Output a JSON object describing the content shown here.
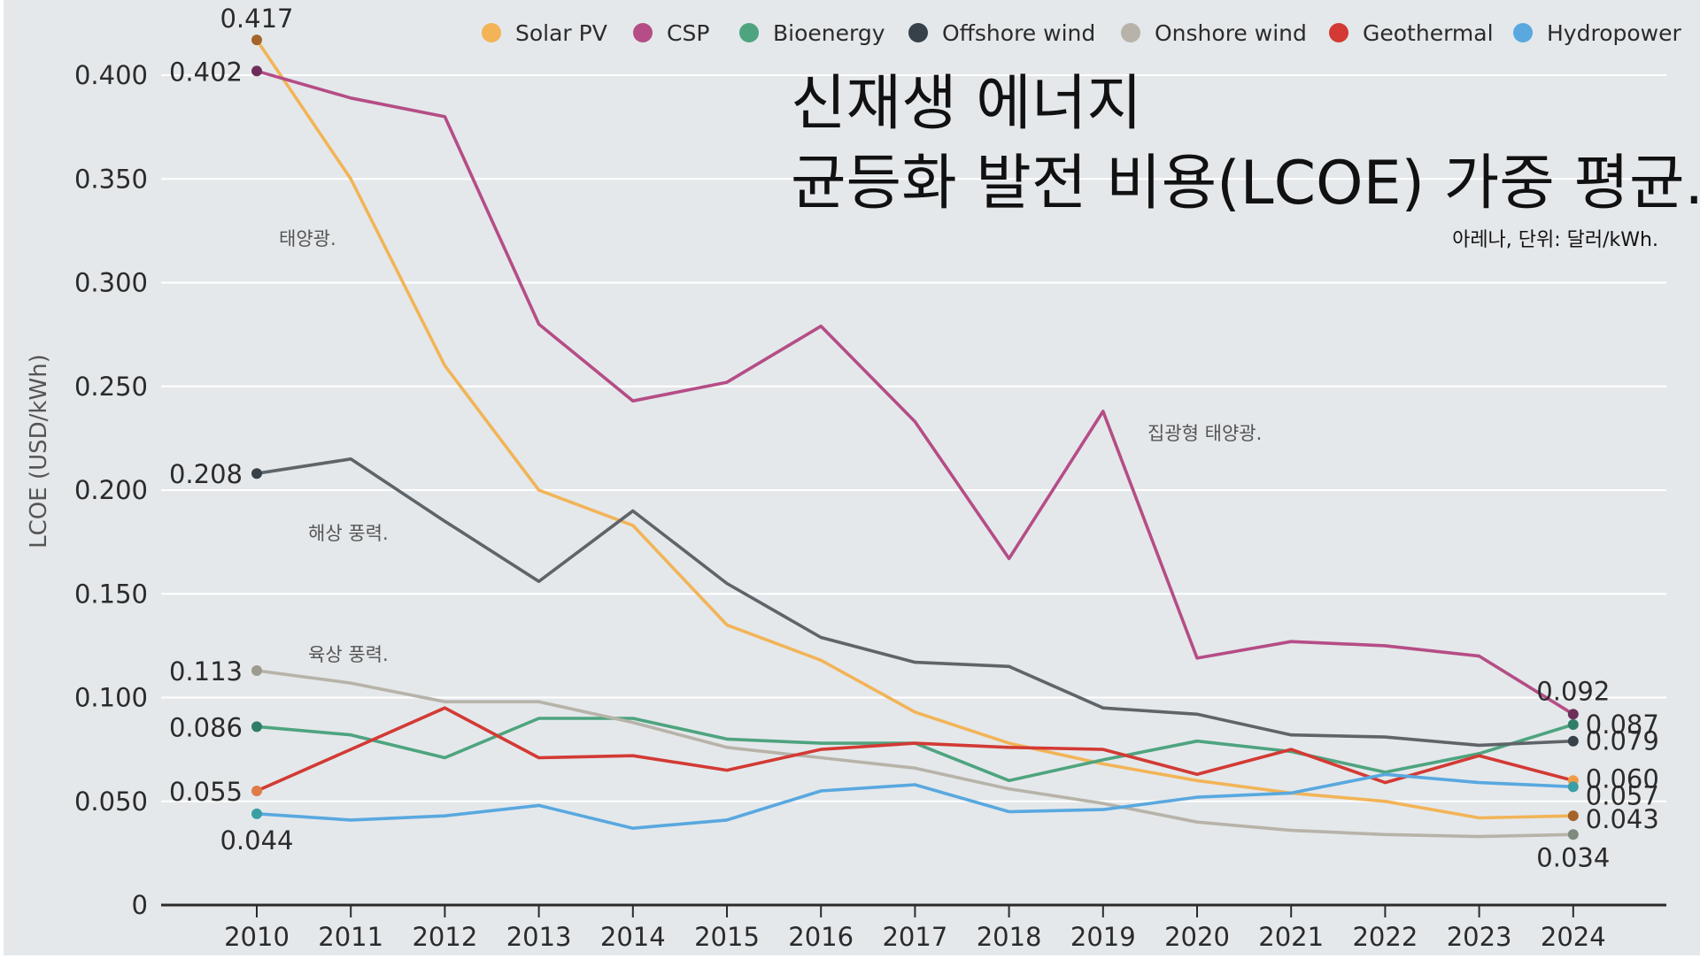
{
  "chart_data": {
    "type": "line",
    "title_line1": "신재생 에너지",
    "title_line2": "균등화 발전 비용(LCOE) 가중 평균.",
    "source": "아레나, 단위: 달러/kWh.",
    "ylabel": "LCOE (USD/kWh)",
    "xlabel": "",
    "ylim": [
      0,
      0.42
    ],
    "yticks": [
      "0",
      "0.050",
      "0.100",
      "0.150",
      "0.200",
      "0.250",
      "0.300",
      "0.350",
      "0.400"
    ],
    "ytick_values": [
      0,
      0.05,
      0.1,
      0.15,
      0.2,
      0.25,
      0.3,
      0.35,
      0.4
    ],
    "categories": [
      "2010",
      "2011",
      "2012",
      "2013",
      "2014",
      "2015",
      "2016",
      "2017",
      "2018",
      "2019",
      "2020",
      "2021",
      "2022",
      "2023",
      "2024"
    ],
    "grid": true,
    "legend_position": "top",
    "series": [
      {
        "name": "Solar PV",
        "color": "#f2b457",
        "values": [
          0.417,
          0.35,
          0.26,
          0.2,
          0.183,
          0.135,
          0.118,
          0.093,
          0.078,
          0.068,
          0.06,
          0.054,
          0.05,
          0.042,
          0.043
        ]
      },
      {
        "name": "CSP",
        "color": "#b54d86",
        "values": [
          0.402,
          0.389,
          0.38,
          0.28,
          0.243,
          0.252,
          0.279,
          0.233,
          0.167,
          0.238,
          0.119,
          0.127,
          0.125,
          0.12,
          0.092
        ]
      },
      {
        "name": "Bioenergy",
        "color": "#4ea47f",
        "values": [
          0.086,
          0.082,
          0.071,
          0.09,
          0.09,
          0.08,
          0.078,
          0.078,
          0.06,
          0.07,
          0.079,
          0.074,
          0.064,
          0.073,
          0.087
        ]
      },
      {
        "name": "Offshore wind",
        "color": "#5f6469",
        "values": [
          0.208,
          0.215,
          0.185,
          0.156,
          0.19,
          0.155,
          0.129,
          0.117,
          0.115,
          0.095,
          0.092,
          0.082,
          0.081,
          0.077,
          0.079
        ]
      },
      {
        "name": "Onshore wind",
        "color": "#b7b3a9",
        "values": [
          0.113,
          0.107,
          0.098,
          0.098,
          0.088,
          0.076,
          0.071,
          0.066,
          0.056,
          0.049,
          0.04,
          0.036,
          0.034,
          0.033,
          0.034
        ]
      },
      {
        "name": "Geothermal",
        "color": "#d33a34",
        "values": [
          0.055,
          0.075,
          0.095,
          0.071,
          0.072,
          0.065,
          0.075,
          0.078,
          0.076,
          0.075,
          0.063,
          0.075,
          0.059,
          0.072,
          0.06
        ]
      },
      {
        "name": "Hydropower",
        "color": "#59a8df",
        "values": [
          0.044,
          0.041,
          0.043,
          0.048,
          0.037,
          0.041,
          0.055,
          0.058,
          0.045,
          0.046,
          0.052,
          0.054,
          0.063,
          0.059,
          0.057
        ]
      }
    ],
    "legend_dot_colors": [
      "#f2b457",
      "#b54d86",
      "#4ea47f",
      "#37414a",
      "#b7b3a9",
      "#d33a34",
      "#59a8df"
    ],
    "start_labels": [
      {
        "series": "Solar PV",
        "text": "0.417",
        "dot_color": "#a5642a"
      },
      {
        "series": "CSP",
        "text": "0.402",
        "dot_color": "#6e2e5a"
      },
      {
        "series": "Offshore wind",
        "text": "0.208",
        "dot_color": "#37414a"
      },
      {
        "series": "Onshore wind",
        "text": "0.113",
        "dot_color": "#9e9a90"
      },
      {
        "series": "Bioenergy",
        "text": "0.086",
        "dot_color": "#2f7d68"
      },
      {
        "series": "Geothermal",
        "text": "0.055",
        "dot_color": "#e07b45"
      },
      {
        "series": "Hydropower",
        "text": "0.044",
        "dot_color": "#3a9ea5"
      }
    ],
    "end_labels": [
      {
        "series": "CSP",
        "text": "0.092",
        "dot_color": "#6e2e5a"
      },
      {
        "series": "Bioenergy",
        "text": "0.087",
        "dot_color": "#2f7d68"
      },
      {
        "series": "Offshore wind",
        "text": "0.079",
        "dot_color": "#37414a"
      },
      {
        "series": "Geothermal",
        "text": "0.060",
        "dot_color": "#f29a45"
      },
      {
        "series": "Hydropower",
        "text": "0.057",
        "dot_color": "#3a9ea5"
      },
      {
        "series": "Solar PV",
        "text": "0.043",
        "dot_color": "#a5642a"
      },
      {
        "series": "Onshore wind",
        "text": "0.034",
        "dot_color": "#7e8a80"
      }
    ],
    "annotations": [
      {
        "text": "태양광.",
        "series": "Solar PV"
      },
      {
        "text": "해상 풍력.",
        "series": "Offshore wind"
      },
      {
        "text": "육상 풍력.",
        "series": "Onshore wind"
      },
      {
        "text": "집광형 태양광.",
        "series": "CSP"
      }
    ],
    "colors": {
      "background": "#e4e8eb",
      "grid": "#ffffff",
      "axis": "#2b2b2b",
      "text": "#2b2b2b",
      "annotation": "#555555"
    }
  }
}
